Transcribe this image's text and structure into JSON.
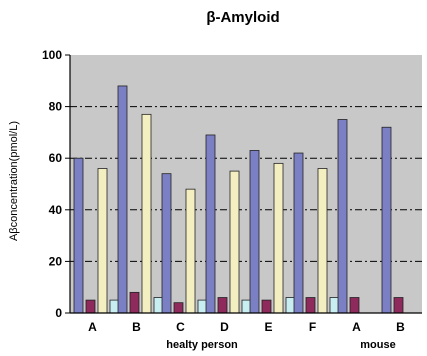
{
  "chart_data": {
    "type": "bar",
    "title": "β-Amyloid",
    "ylabel": "Aβconcentration(pmol/L)",
    "xlabel": "",
    "ylim": [
      0,
      100
    ],
    "yticks": [
      "0",
      "20",
      "40",
      "60",
      "80",
      "100"
    ],
    "categories": [
      "A",
      "B",
      "C",
      "D",
      "E",
      "F",
      "A",
      "B"
    ],
    "groups": [
      {
        "label": "healty person",
        "categories": [
          0,
          1,
          2,
          3,
          4,
          5
        ]
      },
      {
        "label": "mouse",
        "categories": [
          6,
          7
        ]
      }
    ],
    "series": [
      {
        "values": [
          60,
          88,
          54,
          69,
          63,
          62,
          75,
          72
        ],
        "color": "#7b7fc4"
      },
      {
        "values": [
          5,
          8,
          4,
          6,
          5,
          6,
          6,
          6
        ],
        "color": "#8e2a5c"
      },
      {
        "values": [
          56,
          77,
          48,
          55,
          58,
          56,
          null,
          null
        ],
        "color": "#f3efc0"
      },
      {
        "values": [
          5,
          6,
          5,
          5,
          6,
          6,
          null,
          null
        ],
        "color": "#c9eef2"
      }
    ],
    "grid": true,
    "gridlines": [
      20,
      40,
      60,
      80
    ],
    "plot_background": "#c8c8c8"
  }
}
